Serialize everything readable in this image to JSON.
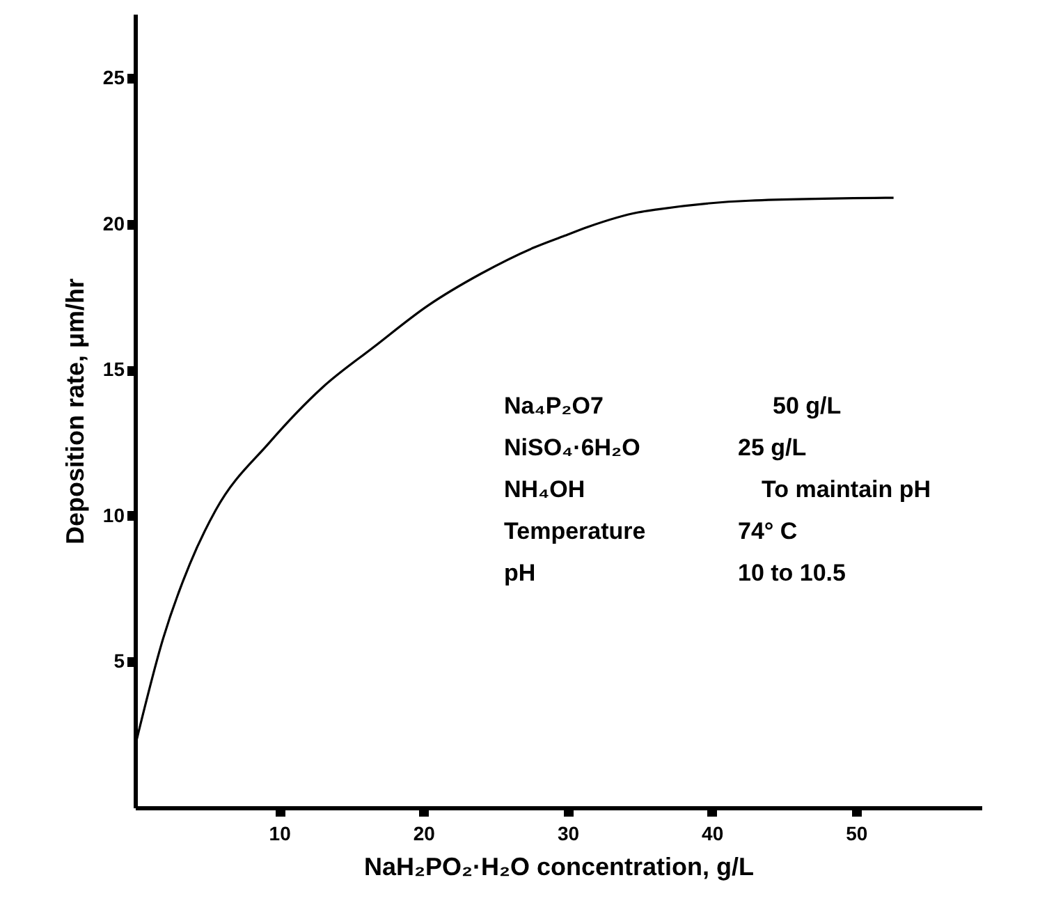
{
  "chart_data": {
    "type": "line",
    "xlabel": "NaH₂PO₂·H₂O concentration, g/L",
    "ylabel": "Deposition rate, μm/hr",
    "x": [
      0.1,
      1.95,
      3.8,
      5.6,
      9.3,
      13,
      16.6,
      20.3,
      24,
      27.7,
      29.8,
      31.4,
      34.9,
      36.2,
      42.6,
      52.6
    ],
    "series": [
      {
        "color": "#000000",
        "values": [
          2.3,
          5.8,
          8.35,
          10.2,
          12.5,
          14.4,
          15.8,
          17.2,
          18.3,
          19.2,
          19.6,
          19.9,
          20.4,
          20.5,
          20.8,
          20.9
        ]
      }
    ],
    "xlim": [
      0,
      58.7
    ],
    "xticks": [
      10,
      20,
      30,
      40,
      50
    ],
    "ylim": [
      0,
      27.2
    ],
    "yticks": [
      5,
      10,
      15,
      20,
      25
    ],
    "grid": false,
    "marker": "none",
    "line_style": "solid",
    "annotations": [
      "Na₄P₂O7",
      "50 g/L",
      "NiSO₄·6H₂O",
      "25 g/L",
      "NH₄OH",
      "To maintain pH",
      "Temperature",
      "74° C",
      "pH",
      "10 to 10.5"
    ]
  }
}
